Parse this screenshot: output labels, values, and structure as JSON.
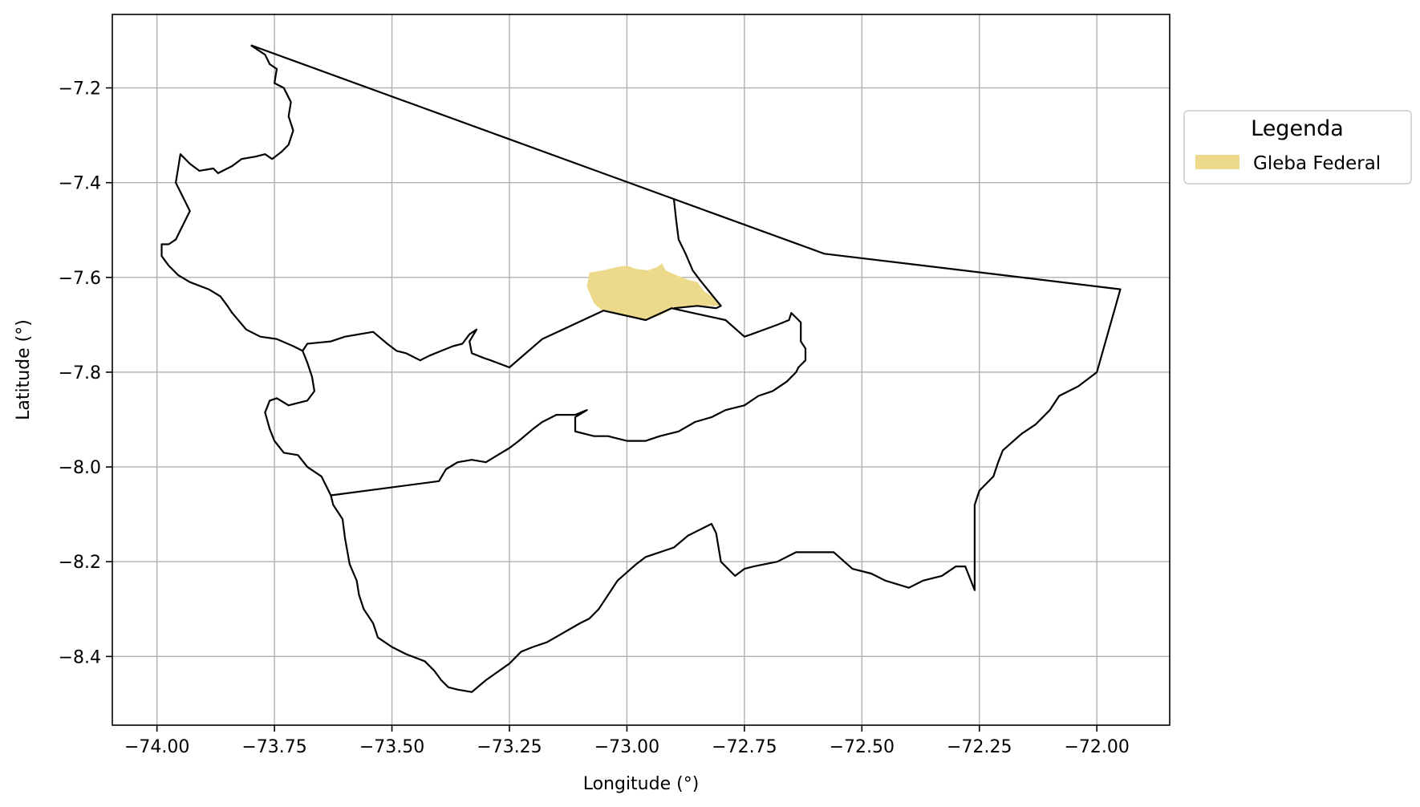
{
  "axes": {
    "xlabel": "Longitude (°)",
    "ylabel": "Latitude (°)",
    "xlim": [
      -74.095,
      -71.845
    ],
    "ylim": [
      -8.545,
      -7.045
    ],
    "xticks": [
      -74.0,
      -73.75,
      -73.5,
      -73.25,
      -73.0,
      -72.75,
      -72.5,
      -72.25,
      -72.0
    ],
    "xtick_labels": [
      "−74.00",
      "−73.75",
      "−73.50",
      "−73.25",
      "−73.00",
      "−72.75",
      "−72.50",
      "−72.25",
      "−72.00"
    ],
    "yticks": [
      -7.2,
      -7.4,
      -7.6,
      -7.8,
      -8.0,
      -8.2,
      -8.4
    ],
    "ytick_labels": [
      "−7.2",
      "−7.4",
      "−7.6",
      "−7.8",
      "−8.0",
      "−8.2",
      "−8.4"
    ],
    "grid": true
  },
  "legend": {
    "title": "Legenda",
    "placement": "outside-right-top",
    "items": [
      {
        "label": "Gleba Federal",
        "color": "#ecd98c"
      }
    ]
  },
  "colors": {
    "boundary": "#000000",
    "gleba": "#ecd98c",
    "grid": "#b0b0b0"
  },
  "layers": {
    "gleba_federal": [
      [
        -73.08,
        -7.59
      ],
      [
        -73.05,
        -7.585
      ],
      [
        -73.02,
        -7.578
      ],
      [
        -73.0,
        -7.575
      ],
      [
        -72.98,
        -7.582
      ],
      [
        -72.955,
        -7.585
      ],
      [
        -72.935,
        -7.578
      ],
      [
        -72.925,
        -7.57
      ],
      [
        -72.918,
        -7.585
      ],
      [
        -72.895,
        -7.595
      ],
      [
        -72.87,
        -7.605
      ],
      [
        -72.85,
        -7.61
      ],
      [
        -72.835,
        -7.63
      ],
      [
        -72.81,
        -7.645
      ],
      [
        -72.8,
        -7.66
      ],
      [
        -72.82,
        -7.66
      ],
      [
        -72.85,
        -7.66
      ],
      [
        -72.9,
        -7.665
      ],
      [
        -72.93,
        -7.68
      ],
      [
        -72.96,
        -7.69
      ],
      [
        -72.99,
        -7.683
      ],
      [
        -73.02,
        -7.675
      ],
      [
        -73.05,
        -7.672
      ],
      [
        -73.07,
        -7.655
      ],
      [
        -73.085,
        -7.62
      ]
    ],
    "boundaries": [
      [
        [
          -73.8,
          -7.11
        ],
        [
          -73.77,
          -7.13
        ],
        [
          -73.76,
          -7.15
        ],
        [
          -73.745,
          -7.16
        ],
        [
          -73.75,
          -7.19
        ],
        [
          -73.73,
          -7.2
        ],
        [
          -73.715,
          -7.23
        ],
        [
          -73.72,
          -7.26
        ],
        [
          -73.71,
          -7.29
        ],
        [
          -73.72,
          -7.32
        ],
        [
          -73.735,
          -7.335
        ],
        [
          -73.755,
          -7.35
        ],
        [
          -73.77,
          -7.34
        ],
        [
          -73.79,
          -7.345
        ],
        [
          -73.82,
          -7.35
        ],
        [
          -73.84,
          -7.365
        ],
        [
          -73.87,
          -7.38
        ],
        [
          -73.88,
          -7.37
        ],
        [
          -73.91,
          -7.375
        ],
        [
          -73.93,
          -7.36
        ],
        [
          -73.95,
          -7.34
        ],
        [
          -73.955,
          -7.37
        ],
        [
          -73.96,
          -7.4
        ],
        [
          -73.945,
          -7.43
        ],
        [
          -73.93,
          -7.46
        ],
        [
          -73.945,
          -7.49
        ],
        [
          -73.96,
          -7.52
        ],
        [
          -73.975,
          -7.53
        ],
        [
          -73.99,
          -7.53
        ],
        [
          -73.99,
          -7.555
        ],
        [
          -73.975,
          -7.575
        ],
        [
          -73.955,
          -7.595
        ],
        [
          -73.93,
          -7.61
        ],
        [
          -73.89,
          -7.625
        ],
        [
          -73.865,
          -7.64
        ],
        [
          -73.85,
          -7.66
        ],
        [
          -73.84,
          -7.675
        ],
        [
          -73.81,
          -7.71
        ],
        [
          -73.78,
          -7.725
        ],
        [
          -73.745,
          -7.73
        ],
        [
          -73.71,
          -7.745
        ],
        [
          -73.69,
          -7.755
        ],
        [
          -73.68,
          -7.74
        ],
        [
          -73.66,
          -7.738
        ],
        [
          -73.63,
          -7.735
        ],
        [
          -73.6,
          -7.725
        ],
        [
          -73.54,
          -7.715
        ],
        [
          -73.51,
          -7.74
        ],
        [
          -73.49,
          -7.755
        ],
        [
          -73.47,
          -7.76
        ],
        [
          -73.44,
          -7.775
        ],
        [
          -73.42,
          -7.765
        ],
        [
          -73.395,
          -7.755
        ],
        [
          -73.37,
          -7.745
        ],
        [
          -73.35,
          -7.74
        ],
        [
          -73.335,
          -7.72
        ],
        [
          -73.32,
          -7.71
        ],
        [
          -73.335,
          -7.735
        ],
        [
          -73.33,
          -7.76
        ],
        [
          -73.305,
          -7.77
        ],
        [
          -73.29,
          -7.775
        ],
        [
          -73.25,
          -7.79
        ],
        [
          -73.18,
          -7.73
        ],
        [
          -73.05,
          -7.67
        ],
        [
          -72.96,
          -7.69
        ],
        [
          -72.905,
          -7.665
        ],
        [
          -72.86,
          -7.675
        ],
        [
          -72.79,
          -7.69
        ],
        [
          -72.75,
          -7.725
        ],
        [
          -72.735,
          -7.72
        ],
        [
          -72.68,
          -7.7
        ],
        [
          -72.655,
          -7.69
        ],
        [
          -72.65,
          -7.675
        ],
        [
          -72.63,
          -7.695
        ],
        [
          -72.63,
          -7.735
        ],
        [
          -72.62,
          -7.75
        ],
        [
          -72.62,
          -7.775
        ],
        [
          -72.635,
          -7.79
        ],
        [
          -72.64,
          -7.8
        ],
        [
          -72.66,
          -7.82
        ],
        [
          -72.69,
          -7.84
        ],
        [
          -72.72,
          -7.85
        ],
        [
          -72.75,
          -7.87
        ],
        [
          -72.79,
          -7.88
        ],
        [
          -72.82,
          -7.895
        ],
        [
          -72.855,
          -7.905
        ],
        [
          -72.89,
          -7.925
        ],
        [
          -72.93,
          -7.935
        ],
        [
          -72.96,
          -7.945
        ],
        [
          -73.0,
          -7.945
        ],
        [
          -73.04,
          -7.935
        ],
        [
          -73.07,
          -7.935
        ],
        [
          -73.11,
          -7.925
        ],
        [
          -73.11,
          -7.895
        ],
        [
          -73.085,
          -7.88
        ],
        [
          -73.11,
          -7.89
        ],
        [
          -73.15,
          -7.89
        ],
        [
          -73.18,
          -7.905
        ],
        [
          -73.2,
          -7.92
        ],
        [
          -73.23,
          -7.945
        ],
        [
          -73.25,
          -7.96
        ],
        [
          -73.275,
          -7.975
        ],
        [
          -73.3,
          -7.99
        ],
        [
          -73.33,
          -7.985
        ],
        [
          -73.36,
          -7.99
        ],
        [
          -73.385,
          -8.005
        ],
        [
          -73.4,
          -8.03
        ],
        [
          -73.63,
          -8.06
        ],
        [
          -73.65,
          -8.02
        ],
        [
          -73.68,
          -8.0
        ],
        [
          -73.7,
          -7.975
        ],
        [
          -73.73,
          -7.97
        ],
        [
          -73.75,
          -7.945
        ],
        [
          -73.76,
          -7.92
        ],
        [
          -73.77,
          -7.885
        ],
        [
          -73.76,
          -7.86
        ],
        [
          -73.745,
          -7.855
        ],
        [
          -73.72,
          -7.87
        ],
        [
          -73.7,
          -7.865
        ],
        [
          -73.68,
          -7.86
        ],
        [
          -73.665,
          -7.84
        ],
        [
          -73.67,
          -7.81
        ],
        [
          -73.68,
          -7.78
        ],
        [
          -73.69,
          -7.755
        ]
      ],
      [
        [
          -73.8,
          -7.11
        ],
        [
          -72.58,
          -7.55
        ],
        [
          -71.95,
          -7.625
        ],
        [
          -72.0,
          -7.8
        ],
        [
          -72.04,
          -7.83
        ],
        [
          -72.08,
          -7.85
        ],
        [
          -72.1,
          -7.88
        ],
        [
          -72.13,
          -7.91
        ],
        [
          -72.16,
          -7.93
        ],
        [
          -72.2,
          -7.965
        ],
        [
          -72.21,
          -7.99
        ],
        [
          -72.22,
          -8.02
        ],
        [
          -72.25,
          -8.05
        ],
        [
          -72.26,
          -8.08
        ],
        [
          -72.26,
          -8.26
        ],
        [
          -72.28,
          -8.21
        ],
        [
          -72.3,
          -8.21
        ],
        [
          -72.33,
          -8.23
        ],
        [
          -72.37,
          -8.24
        ],
        [
          -72.4,
          -8.255
        ],
        [
          -72.45,
          -8.24
        ],
        [
          -72.48,
          -8.225
        ],
        [
          -72.52,
          -8.215
        ],
        [
          -72.56,
          -8.18
        ],
        [
          -72.64,
          -8.18
        ],
        [
          -72.68,
          -8.2
        ],
        [
          -72.73,
          -8.21
        ],
        [
          -72.75,
          -8.215
        ],
        [
          -72.77,
          -8.23
        ],
        [
          -72.8,
          -8.2
        ],
        [
          -72.81,
          -8.14
        ],
        [
          -72.82,
          -8.12
        ],
        [
          -72.87,
          -8.145
        ],
        [
          -72.9,
          -8.17
        ],
        [
          -72.96,
          -8.19
        ],
        [
          -72.98,
          -8.205
        ],
        [
          -73.02,
          -8.24
        ],
        [
          -73.06,
          -8.3
        ],
        [
          -73.08,
          -8.32
        ],
        [
          -73.1,
          -8.33
        ],
        [
          -73.135,
          -8.35
        ],
        [
          -73.17,
          -8.37
        ],
        [
          -73.2,
          -8.38
        ],
        [
          -73.225,
          -8.39
        ],
        [
          -73.25,
          -8.415
        ],
        [
          -73.3,
          -8.45
        ],
        [
          -73.33,
          -8.475
        ],
        [
          -73.36,
          -8.47
        ],
        [
          -73.38,
          -8.465
        ],
        [
          -73.395,
          -8.45
        ],
        [
          -73.41,
          -8.43
        ],
        [
          -73.43,
          -8.41
        ],
        [
          -73.47,
          -8.395
        ],
        [
          -73.5,
          -8.38
        ],
        [
          -73.53,
          -8.36
        ],
        [
          -73.54,
          -8.33
        ],
        [
          -73.56,
          -8.3
        ],
        [
          -73.57,
          -8.27
        ],
        [
          -73.575,
          -8.24
        ],
        [
          -73.59,
          -8.205
        ],
        [
          -73.6,
          -8.15
        ],
        [
          -73.605,
          -8.11
        ],
        [
          -73.625,
          -8.08
        ],
        [
          -73.63,
          -8.06
        ]
      ],
      [
        [
          -72.9,
          -7.435
        ],
        [
          -72.895,
          -7.48
        ],
        [
          -72.89,
          -7.52
        ],
        [
          -72.875,
          -7.55
        ],
        [
          -72.86,
          -7.585
        ],
        [
          -72.845,
          -7.605
        ],
        [
          -72.8,
          -7.66
        ],
        [
          -72.81,
          -7.665
        ],
        [
          -72.85,
          -7.66
        ],
        [
          -72.9,
          -7.665
        ]
      ]
    ]
  }
}
